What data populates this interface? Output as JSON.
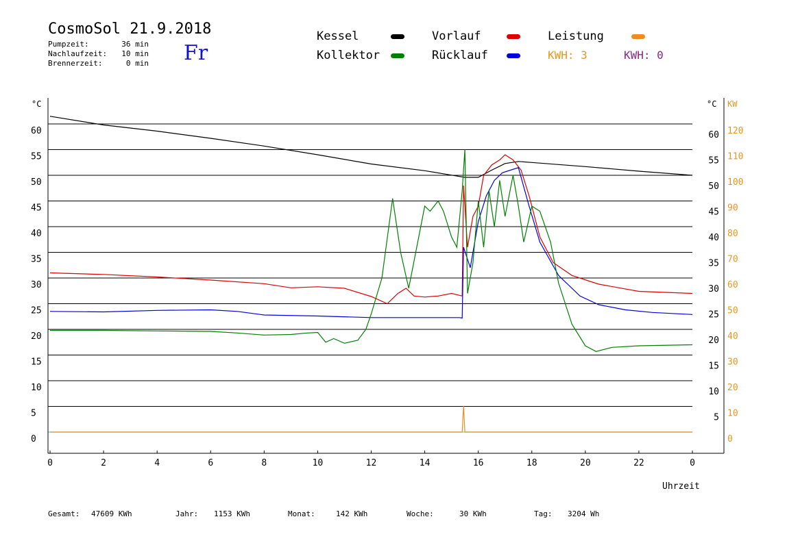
{
  "header": {
    "title": "CosmoSol 21.9.2018",
    "day": "Fr",
    "stats": [
      {
        "label": "Pumpzeit:",
        "value": "36 min"
      },
      {
        "label": "Nachlaufzeit:",
        "value": "10 min"
      },
      {
        "label": "Brennerzeit:",
        "value": "0 min"
      }
    ]
  },
  "legend": {
    "items": [
      {
        "label": "Kessel",
        "color": "#000000"
      },
      {
        "label": "Vorlauf",
        "color": "#dd0000"
      },
      {
        "label": "Leistung",
        "color": "#f08c1e"
      },
      {
        "label": "Kollektor",
        "color": "#008000"
      },
      {
        "label": "Rücklauf",
        "color": "#0000dd"
      }
    ],
    "kwh": [
      {
        "text": "KWH: 3",
        "color": "#e8961e"
      },
      {
        "text": "KWH: 0",
        "color": "#8c288c"
      }
    ]
  },
  "footer": [
    {
      "label": "Gesamt:",
      "value": "47609 KWh"
    },
    {
      "label": "Jahr:",
      "value": "1153 KWh"
    },
    {
      "label": "Monat:",
      "value": "142 KWh"
    },
    {
      "label": "Woche:",
      "value": "30 KWh"
    },
    {
      "label": "Tag:",
      "value": "3204 Wh"
    }
  ],
  "chart_data": {
    "type": "line",
    "xlabel": "Uhrzeit",
    "x_ticks": [
      "0",
      "2",
      "4",
      "6",
      "8",
      "10",
      "12",
      "14",
      "16",
      "18",
      "20",
      "22",
      "0"
    ],
    "xlim": [
      0,
      24
    ],
    "y_left_unit": "°C",
    "y_left_ticks": [
      "0",
      "5",
      "10",
      "15",
      "20",
      "25",
      "30",
      "35",
      "40",
      "45",
      "50",
      "55",
      "60"
    ],
    "y_right_unit": "°C",
    "y_right_ticks": [
      "5",
      "10",
      "15",
      "20",
      "25",
      "30",
      "35",
      "40",
      "45",
      "50",
      "55",
      "60"
    ],
    "y2_unit": "KW",
    "y2_ticks": [
      "0",
      "10",
      "20",
      "30",
      "40",
      "50",
      "60",
      "70",
      "80",
      "90",
      "100",
      "110",
      "120"
    ],
    "ylim": [
      -4,
      66
    ],
    "grid": "horizontal",
    "series": [
      {
        "name": "Kessel",
        "color": "#000000",
        "points": [
          [
            0,
            61.5
          ],
          [
            2,
            59.8
          ],
          [
            4,
            58.6
          ],
          [
            6,
            57.2
          ],
          [
            8,
            55.7
          ],
          [
            10,
            54.0
          ],
          [
            12,
            52.2
          ],
          [
            14,
            50.9
          ],
          [
            15.5,
            49.6
          ],
          [
            16,
            49.6
          ],
          [
            16.5,
            51.0
          ],
          [
            17,
            52.3
          ],
          [
            17.5,
            52.7
          ],
          [
            18,
            52.5
          ],
          [
            20,
            51.7
          ],
          [
            22,
            50.8
          ],
          [
            24,
            50.0
          ]
        ]
      },
      {
        "name": "Vorlauf",
        "color": "#dd0000",
        "points": [
          [
            0,
            31.0
          ],
          [
            2,
            30.7
          ],
          [
            4,
            30.2
          ],
          [
            6,
            29.6
          ],
          [
            8,
            28.9
          ],
          [
            9,
            28.1
          ],
          [
            10,
            28.3
          ],
          [
            11,
            28.0
          ],
          [
            12,
            26.4
          ],
          [
            12.6,
            25.0
          ],
          [
            13,
            27.0
          ],
          [
            13.3,
            28.0
          ],
          [
            13.6,
            26.5
          ],
          [
            14,
            26.3
          ],
          [
            14.5,
            26.5
          ],
          [
            15,
            27.0
          ],
          [
            15.4,
            26.5
          ],
          [
            15.45,
            48.0
          ],
          [
            15.6,
            36.0
          ],
          [
            15.8,
            42.0
          ],
          [
            16.0,
            44.0
          ],
          [
            16.2,
            50.0
          ],
          [
            16.5,
            52.0
          ],
          [
            16.8,
            53.0
          ],
          [
            17.0,
            54.0
          ],
          [
            17.3,
            53.0
          ],
          [
            17.6,
            51.0
          ],
          [
            17.9,
            46.0
          ],
          [
            18.3,
            38.0
          ],
          [
            18.8,
            33.0
          ],
          [
            19.5,
            30.5
          ],
          [
            20.5,
            28.8
          ],
          [
            22,
            27.4
          ],
          [
            24,
            27.0
          ]
        ]
      },
      {
        "name": "Rücklauf",
        "color": "#0000dd",
        "points": [
          [
            0,
            23.5
          ],
          [
            2,
            23.4
          ],
          [
            4,
            23.7
          ],
          [
            6,
            23.8
          ],
          [
            7,
            23.5
          ],
          [
            8,
            22.8
          ],
          [
            10,
            22.6
          ],
          [
            12,
            22.3
          ],
          [
            14,
            22.3
          ],
          [
            15.3,
            22.3
          ],
          [
            15.4,
            22.2
          ],
          [
            15.45,
            36.0
          ],
          [
            15.7,
            32.0
          ],
          [
            16.0,
            41.0
          ],
          [
            16.3,
            46.0
          ],
          [
            16.6,
            49.0
          ],
          [
            16.9,
            50.5
          ],
          [
            17.2,
            51.0
          ],
          [
            17.5,
            51.5
          ],
          [
            17.9,
            44.0
          ],
          [
            18.3,
            37.0
          ],
          [
            19,
            30.5
          ],
          [
            19.8,
            26.5
          ],
          [
            20.5,
            24.8
          ],
          [
            21.5,
            23.8
          ],
          [
            22.5,
            23.3
          ],
          [
            24,
            22.9
          ]
        ]
      },
      {
        "name": "Kollektor",
        "color": "#008000",
        "points": [
          [
            0,
            19.8
          ],
          [
            2,
            19.8
          ],
          [
            4,
            19.7
          ],
          [
            6,
            19.6
          ],
          [
            7,
            19.3
          ],
          [
            8,
            18.9
          ],
          [
            9,
            19.0
          ],
          [
            9.6,
            19.3
          ],
          [
            10,
            19.4
          ],
          [
            10.3,
            17.5
          ],
          [
            10.6,
            18.2
          ],
          [
            11,
            17.3
          ],
          [
            11.5,
            17.9
          ],
          [
            11.8,
            20.0
          ],
          [
            12,
            23.0
          ],
          [
            12.4,
            30.0
          ],
          [
            12.8,
            45.5
          ],
          [
            13.1,
            35.0
          ],
          [
            13.4,
            28.0
          ],
          [
            13.7,
            36.0
          ],
          [
            14,
            44.0
          ],
          [
            14.2,
            43.0
          ],
          [
            14.5,
            45.0
          ],
          [
            14.7,
            43.0
          ],
          [
            15.0,
            38.0
          ],
          [
            15.2,
            36.0
          ],
          [
            15.4,
            47.0
          ],
          [
            15.5,
            55.0
          ],
          [
            15.6,
            27.0
          ],
          [
            15.8,
            33.0
          ],
          [
            16.0,
            45.0
          ],
          [
            16.2,
            36.0
          ],
          [
            16.4,
            47.0
          ],
          [
            16.6,
            40.0
          ],
          [
            16.8,
            49.0
          ],
          [
            17.0,
            42.0
          ],
          [
            17.3,
            50.0
          ],
          [
            17.5,
            44.0
          ],
          [
            17.7,
            37.0
          ],
          [
            18.0,
            44.0
          ],
          [
            18.3,
            43.0
          ],
          [
            18.7,
            37.0
          ],
          [
            19.0,
            29.0
          ],
          [
            19.5,
            21.0
          ],
          [
            20.0,
            16.8
          ],
          [
            20.4,
            15.7
          ],
          [
            21,
            16.5
          ],
          [
            22,
            16.8
          ],
          [
            24,
            17.0
          ]
        ]
      },
      {
        "name": "Leistung",
        "color": "#f08c1e",
        "points": [
          [
            0,
            0
          ],
          [
            15.4,
            0
          ],
          [
            15.45,
            5.1
          ],
          [
            15.5,
            0
          ],
          [
            24,
            0
          ]
        ]
      }
    ]
  }
}
